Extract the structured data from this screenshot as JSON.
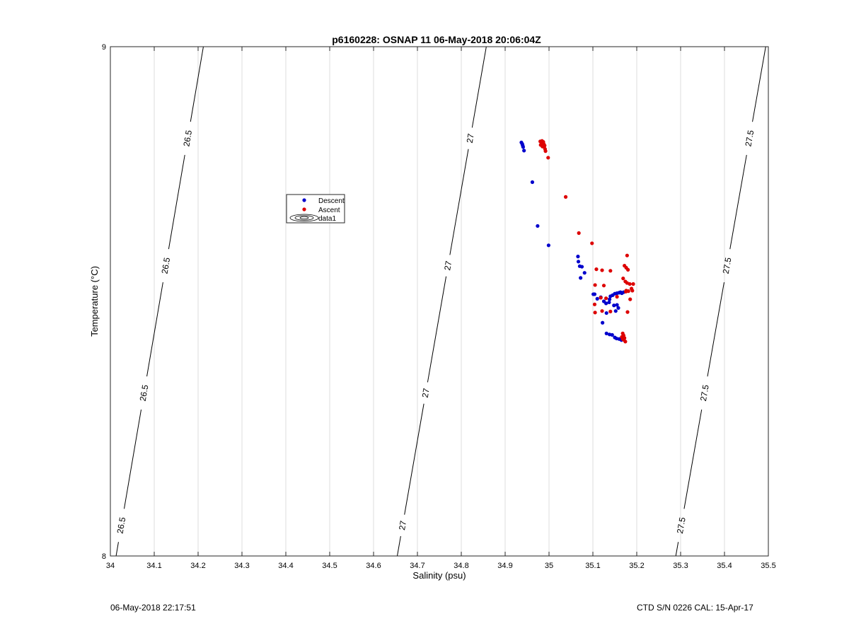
{
  "chart_data": {
    "type": "scatter",
    "title": "p6160228: OSNAP 11 06-May-2018 20:06:04Z",
    "xlabel": "Salinity (psu)",
    "ylabel": "Temperature (°C)",
    "xlim": [
      34,
      35.5
    ],
    "ylim": [
      8,
      9
    ],
    "xticks": [
      "34",
      "34.1",
      "34.2",
      "34.3",
      "34.4",
      "34.5",
      "34.6",
      "34.7",
      "34.8",
      "34.9",
      "35",
      "35.1",
      "35.2",
      "35.3",
      "35.4",
      "35.5"
    ],
    "yticks": [
      "8",
      "9"
    ],
    "grid": "vertical",
    "legend_placement": "upper-left, inside axes",
    "legend": [
      "Descent",
      "Ascent",
      "data1"
    ],
    "series": [
      {
        "name": "Descent",
        "color": "#0000cc",
        "points": [
          [
            34.937,
            8.812
          ],
          [
            34.939,
            8.809
          ],
          [
            34.94,
            8.806
          ],
          [
            34.941,
            8.803
          ],
          [
            34.943,
            8.796
          ],
          [
            34.962,
            8.734
          ],
          [
            34.974,
            8.648
          ],
          [
            34.999,
            8.61
          ],
          [
            35.066,
            8.588
          ],
          [
            35.067,
            8.578
          ],
          [
            35.07,
            8.569
          ],
          [
            35.075,
            8.568
          ],
          [
            35.081,
            8.556
          ],
          [
            35.072,
            8.546
          ],
          [
            35.101,
            8.514
          ],
          [
            35.104,
            8.514
          ],
          [
            35.11,
            8.505
          ],
          [
            35.118,
            8.508
          ],
          [
            35.138,
            8.504
          ],
          [
            35.14,
            8.51
          ],
          [
            35.145,
            8.512
          ],
          [
            35.15,
            8.515
          ],
          [
            35.155,
            8.516
          ],
          [
            35.16,
            8.517
          ],
          [
            35.163,
            8.518
          ],
          [
            35.166,
            8.516
          ],
          [
            35.17,
            8.518
          ],
          [
            35.125,
            8.5
          ],
          [
            35.13,
            8.496
          ],
          [
            35.137,
            8.498
          ],
          [
            35.148,
            8.492
          ],
          [
            35.155,
            8.493
          ],
          [
            35.158,
            8.487
          ],
          [
            35.152,
            8.481
          ],
          [
            35.131,
            8.477
          ],
          [
            35.122,
            8.458
          ],
          [
            35.131,
            8.437
          ],
          [
            35.138,
            8.435
          ],
          [
            35.144,
            8.434
          ],
          [
            35.15,
            8.429
          ],
          [
            35.154,
            8.427
          ],
          [
            35.16,
            8.426
          ],
          [
            35.165,
            8.424
          ],
          [
            35.168,
            8.427
          ]
        ]
      },
      {
        "name": "Ascent",
        "color": "#dd0000",
        "points": [
          [
            34.98,
            8.814
          ],
          [
            34.984,
            8.815
          ],
          [
            34.987,
            8.813
          ],
          [
            34.983,
            8.81
          ],
          [
            34.988,
            8.809
          ],
          [
            34.986,
            8.808
          ],
          [
            34.981,
            8.807
          ],
          [
            34.99,
            8.806
          ],
          [
            34.985,
            8.804
          ],
          [
            34.989,
            8.803
          ],
          [
            34.991,
            8.799
          ],
          [
            34.992,
            8.795
          ],
          [
            34.998,
            8.782
          ],
          [
            35.038,
            8.705
          ],
          [
            35.068,
            8.634
          ],
          [
            35.098,
            8.614
          ],
          [
            35.178,
            8.59
          ],
          [
            35.172,
            8.57
          ],
          [
            35.176,
            8.566
          ],
          [
            35.18,
            8.562
          ],
          [
            35.108,
            8.563
          ],
          [
            35.121,
            8.561
          ],
          [
            35.14,
            8.56
          ],
          [
            35.169,
            8.545
          ],
          [
            35.174,
            8.539
          ],
          [
            35.178,
            8.536
          ],
          [
            35.184,
            8.534
          ],
          [
            35.192,
            8.534
          ],
          [
            35.105,
            8.532
          ],
          [
            35.125,
            8.531
          ],
          [
            35.188,
            8.525
          ],
          [
            35.176,
            8.521
          ],
          [
            35.181,
            8.52
          ],
          [
            35.19,
            8.521
          ],
          [
            35.175,
            8.519
          ],
          [
            35.155,
            8.509
          ],
          [
            35.118,
            8.507
          ],
          [
            35.13,
            8.506
          ],
          [
            35.185,
            8.504
          ],
          [
            35.104,
            8.494
          ],
          [
            35.121,
            8.481
          ],
          [
            35.14,
            8.48
          ],
          [
            35.105,
            8.478
          ],
          [
            35.179,
            8.479
          ],
          [
            35.168,
            8.437
          ],
          [
            35.17,
            8.433
          ],
          [
            35.166,
            8.43
          ],
          [
            35.172,
            8.428
          ],
          [
            35.168,
            8.426
          ],
          [
            35.171,
            8.424
          ],
          [
            35.174,
            8.421
          ]
        ]
      }
    ],
    "isopycnals": [
      {
        "label": "26.5",
        "x_at_bottom": 34.013,
        "x_at_top": 34.212,
        "label_y": [
          8.06,
          8.32,
          8.57,
          8.82
        ]
      },
      {
        "label": "27",
        "x_at_bottom": 34.654,
        "x_at_top": 34.857,
        "label_y": [
          8.06,
          8.32,
          8.57,
          8.82
        ]
      },
      {
        "label": "27.5",
        "x_at_bottom": 35.289,
        "x_at_top": 35.494,
        "label_y": [
          8.06,
          8.32,
          8.57,
          8.82
        ]
      }
    ]
  },
  "footer": {
    "left": "06-May-2018 22:17:51",
    "right": "CTD S/N 0226  CAL: 15-Apr-17"
  }
}
